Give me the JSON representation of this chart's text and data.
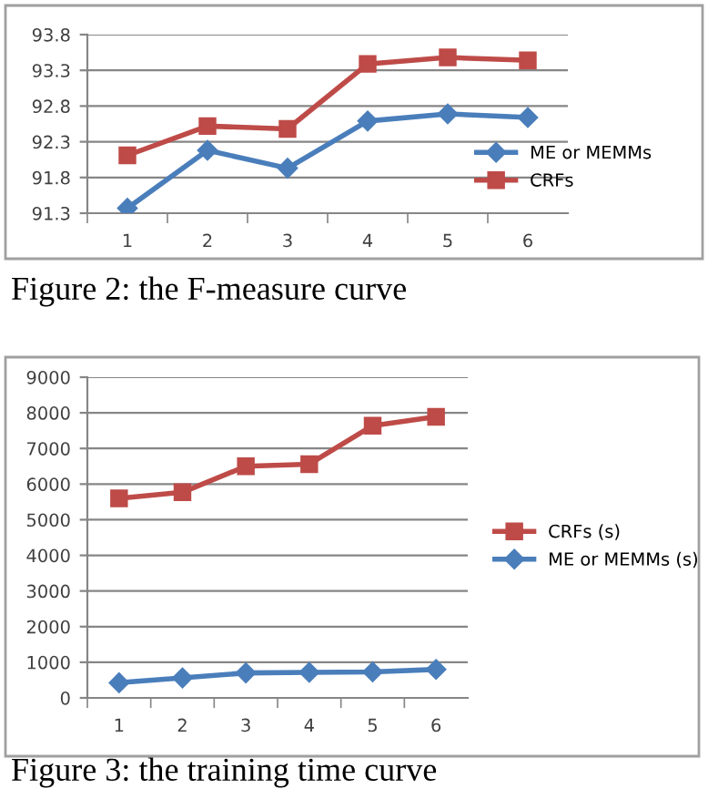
{
  "chart_data": [
    {
      "type": "line",
      "categories": [
        "1",
        "2",
        "3",
        "4",
        "5",
        "6"
      ],
      "ylim": [
        91.3,
        93.8
      ],
      "yticks": [
        91.3,
        91.8,
        92.3,
        92.8,
        93.3,
        93.8
      ],
      "grid": "y",
      "legend": "right",
      "annotations": [
        "Figure 2: the F-measure curve"
      ],
      "series": [
        {
          "name": "ME or MEMMs",
          "color": "#4a7ebb",
          "marker": "diamond",
          "values": [
            91.37,
            92.18,
            91.93,
            92.59,
            92.69,
            92.64
          ]
        },
        {
          "name": "CRFs",
          "color": "#be4b48",
          "marker": "square",
          "values": [
            92.11,
            92.52,
            92.48,
            93.39,
            93.48,
            93.44
          ]
        }
      ]
    },
    {
      "type": "line",
      "categories": [
        "1",
        "2",
        "3",
        "4",
        "5",
        "6"
      ],
      "ylim": [
        0,
        9000
      ],
      "yticks": [
        0,
        1000,
        2000,
        3000,
        4000,
        5000,
        6000,
        7000,
        8000,
        9000
      ],
      "grid": "y",
      "legend": "right",
      "annotations": [
        "Figure 3: the training time curve"
      ],
      "series": [
        {
          "name": "CRFs (s)",
          "color": "#be4b48",
          "marker": "square",
          "values": [
            5600,
            5770,
            6500,
            6560,
            7640,
            7890
          ]
        },
        {
          "name": "ME or MEMMs (s)",
          "color": "#4a7ebb",
          "marker": "diamond",
          "values": [
            425,
            560,
            700,
            715,
            730,
            800
          ]
        }
      ]
    }
  ]
}
